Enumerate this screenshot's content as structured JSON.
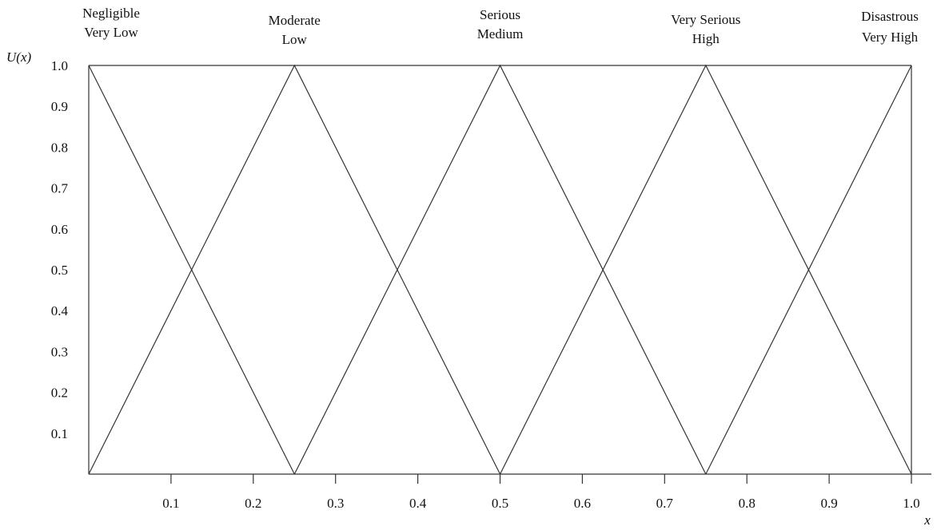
{
  "chart_data": {
    "type": "line",
    "title": "",
    "xlabel": "x",
    "ylabel": "U(x)",
    "xlim": [
      0,
      1.0
    ],
    "ylim": [
      0,
      1.0
    ],
    "grid": false,
    "x_ticks": [
      "0.1",
      "0.2",
      "0.3",
      "0.4",
      "0.5",
      "0.6",
      "0.7",
      "0.8",
      "0.9",
      "1.0"
    ],
    "x_tick_values": [
      0.1,
      0.2,
      0.3,
      0.4,
      0.5,
      0.6,
      0.7,
      0.8,
      0.9,
      1.0
    ],
    "y_ticks": [
      "0.1",
      "0.2",
      "0.3",
      "0.4",
      "0.5",
      "0.6",
      "0.7",
      "0.8",
      "0.9",
      "1.0"
    ],
    "y_tick_values": [
      0.1,
      0.2,
      0.3,
      0.4,
      0.5,
      0.6,
      0.7,
      0.8,
      0.9,
      1.0
    ],
    "categories": [
      {
        "line1": "Negligible",
        "line2": "Very Low",
        "peak": 0.0
      },
      {
        "line1": "Moderate",
        "line2": "Low",
        "peak": 0.25
      },
      {
        "line1": "Serious",
        "line2": "Medium",
        "peak": 0.5
      },
      {
        "line1": "Very Serious",
        "line2": "High",
        "peak": 0.75
      },
      {
        "line1": "Disastrous",
        "line2": "Very High",
        "peak": 1.0
      }
    ],
    "series": [
      {
        "points": [
          [
            0.0,
            1.0
          ],
          [
            0.25,
            0.0
          ]
        ]
      },
      {
        "points": [
          [
            0.0,
            0.0
          ],
          [
            0.25,
            1.0
          ],
          [
            0.5,
            0.0
          ]
        ]
      },
      {
        "points": [
          [
            0.25,
            0.0
          ],
          [
            0.5,
            1.0
          ],
          [
            0.75,
            0.0
          ]
        ]
      },
      {
        "points": [
          [
            0.5,
            0.0
          ],
          [
            0.75,
            1.0
          ],
          [
            1.0,
            0.0
          ]
        ]
      },
      {
        "points": [
          [
            0.75,
            0.0
          ],
          [
            1.0,
            1.0
          ]
        ]
      }
    ]
  }
}
